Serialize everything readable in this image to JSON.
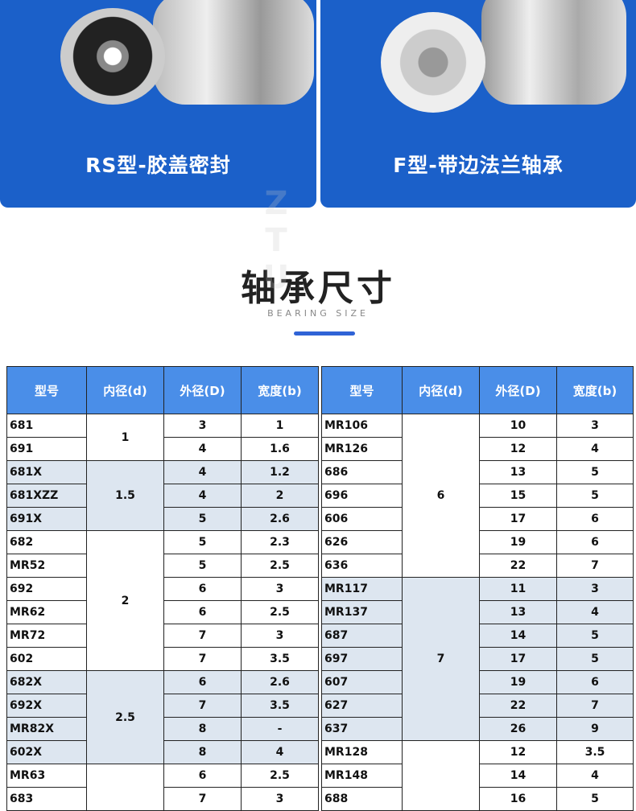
{
  "panels": [
    {
      "caption": "RS型-胶盖密封"
    },
    {
      "caption": "F型-带边法兰轴承"
    }
  ],
  "section": {
    "title": "轴承尺寸",
    "subtitle": "BEARING SIZE"
  },
  "colors": {
    "panel": "#1b60c9",
    "header": "#4a8ee8",
    "shade": "#dde6f0",
    "accent": "#2f63d6"
  },
  "watermark": "ZTU",
  "table_headers": [
    "型号",
    "内径(d)",
    "外径(D)",
    "宽度(b)"
  ],
  "left_table": [
    {
      "d": "1",
      "shaded": false,
      "rows": [
        [
          "681",
          "3",
          "1"
        ],
        [
          "691",
          "4",
          "1.6"
        ]
      ]
    },
    {
      "d": "1.5",
      "shaded": true,
      "rows": [
        [
          "681X",
          "4",
          "1.2"
        ],
        [
          "681XZZ",
          "4",
          "2"
        ],
        [
          "691X",
          "5",
          "2.6"
        ]
      ]
    },
    {
      "d": "2",
      "shaded": false,
      "rows": [
        [
          "682",
          "5",
          "2.3"
        ],
        [
          "MR52",
          "5",
          "2.5"
        ],
        [
          "692",
          "6",
          "3"
        ],
        [
          "MR62",
          "6",
          "2.5"
        ],
        [
          "MR72",
          "7",
          "3"
        ],
        [
          "602",
          "7",
          "3.5"
        ]
      ]
    },
    {
      "d": "2.5",
      "shaded": true,
      "rows": [
        [
          "682X",
          "6",
          "2.6"
        ],
        [
          "692X",
          "7",
          "3.5"
        ],
        [
          "MR82X",
          "8",
          "-"
        ],
        [
          "602X",
          "8",
          "4"
        ]
      ]
    },
    {
      "d": "",
      "shaded": false,
      "rows": [
        [
          "MR63",
          "6",
          "2.5"
        ],
        [
          "683",
          "7",
          "3"
        ]
      ]
    }
  ],
  "right_table": [
    {
      "d": "6",
      "shaded": false,
      "rows": [
        [
          "MR106",
          "10",
          "3"
        ],
        [
          "MR126",
          "12",
          "4"
        ],
        [
          "686",
          "13",
          "5"
        ],
        [
          "696",
          "15",
          "5"
        ],
        [
          "606",
          "17",
          "6"
        ],
        [
          "626",
          "19",
          "6"
        ],
        [
          "636",
          "22",
          "7"
        ]
      ]
    },
    {
      "d": "7",
      "shaded": true,
      "rows": [
        [
          "MR117",
          "11",
          "3"
        ],
        [
          "MR137",
          "13",
          "4"
        ],
        [
          "687",
          "14",
          "5"
        ],
        [
          "697",
          "17",
          "5"
        ],
        [
          "607",
          "19",
          "6"
        ],
        [
          "627",
          "22",
          "7"
        ],
        [
          "637",
          "26",
          "9"
        ]
      ]
    },
    {
      "d": "",
      "shaded": false,
      "rows": [
        [
          "MR128",
          "12",
          "3.5"
        ],
        [
          "MR148",
          "14",
          "4"
        ],
        [
          "688",
          "16",
          "5"
        ]
      ]
    }
  ]
}
